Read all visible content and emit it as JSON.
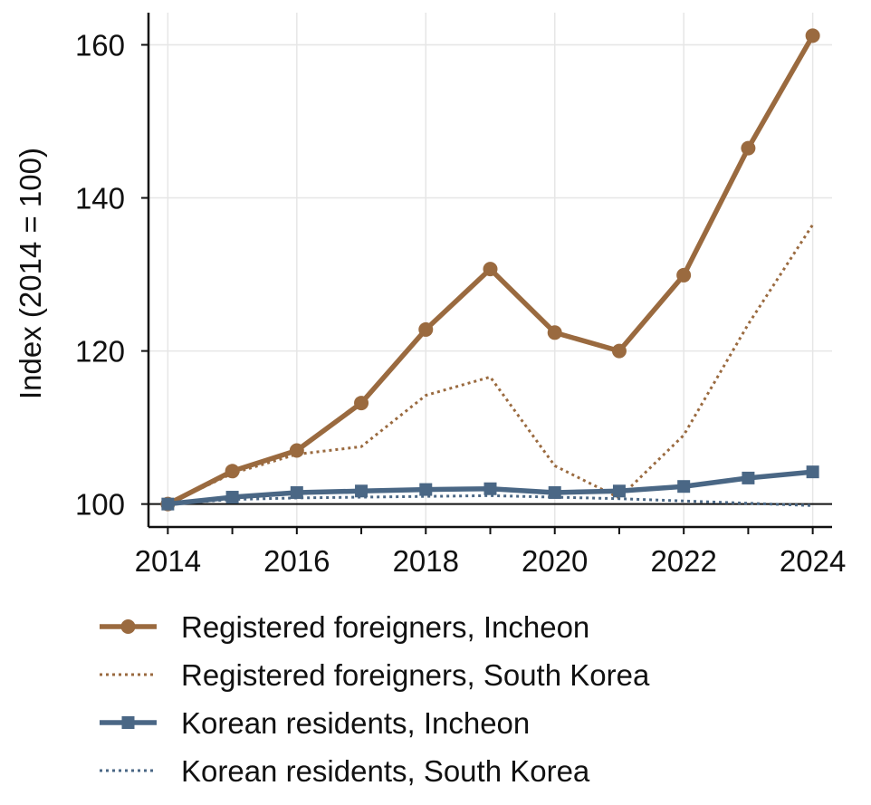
{
  "chart_data": {
    "type": "line",
    "title": "",
    "xlabel": "",
    "ylabel": "Index (2014 = 100)",
    "x": [
      2014,
      2015,
      2016,
      2017,
      2018,
      2019,
      2020,
      2021,
      2022,
      2023,
      2024
    ],
    "xticks": [
      2014,
      2016,
      2018,
      2020,
      2022,
      2024
    ],
    "yticks": [
      100,
      120,
      140,
      160
    ],
    "xlim": [
      2013.7,
      2024.3
    ],
    "ylim": [
      97,
      164.2
    ],
    "reference_line": 100,
    "grid": true,
    "legend_position": "bottom",
    "series": [
      {
        "name": "Registered foreigners, Incheon",
        "color": "#9A6A3F",
        "line_style": "solid",
        "marker": "circle",
        "values": [
          100,
          104.3,
          107.0,
          113.2,
          122.8,
          130.7,
          122.4,
          120.0,
          129.9,
          146.5,
          161.2
        ]
      },
      {
        "name": "Registered foreigners, South Korea",
        "color": "#9A6A3F",
        "line_style": "dotted",
        "marker": "none",
        "values": [
          100,
          104.0,
          106.5,
          107.5,
          114.2,
          116.6,
          105.0,
          100.8,
          109.0,
          123.5,
          136.5
        ]
      },
      {
        "name": "Korean residents, Incheon",
        "color": "#4A6785",
        "line_style": "solid",
        "marker": "square",
        "values": [
          100,
          100.9,
          101.5,
          101.7,
          101.9,
          102.0,
          101.5,
          101.7,
          102.3,
          103.4,
          104.2
        ]
      },
      {
        "name": "Korean residents, South Korea",
        "color": "#4A6785",
        "line_style": "dotted",
        "marker": "none",
        "values": [
          100,
          100.6,
          100.8,
          100.9,
          101.0,
          101.1,
          100.9,
          100.7,
          100.4,
          100.1,
          99.8
        ]
      }
    ]
  }
}
